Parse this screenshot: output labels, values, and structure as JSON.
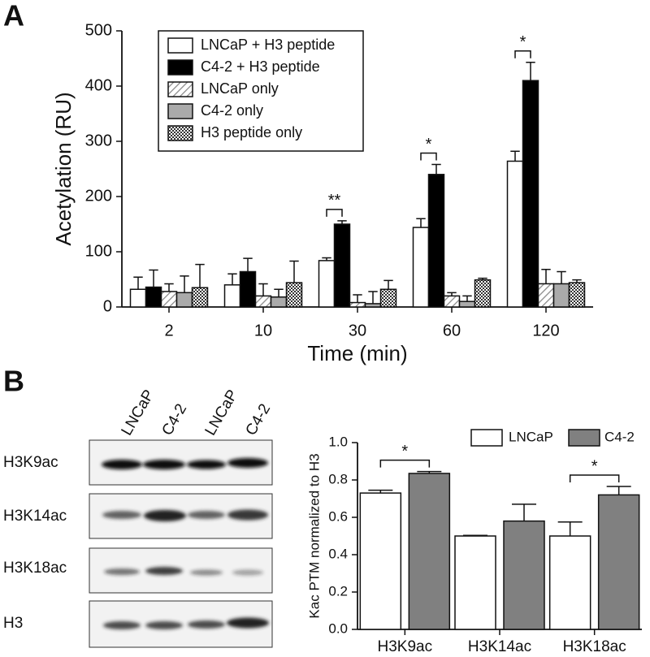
{
  "panels": [
    "A",
    "B"
  ],
  "blot": {
    "columns": [
      "LNCaP",
      "C4-2",
      "LNCaP",
      "C4-2"
    ],
    "rows": [
      "H3K9ac",
      "H3K14ac",
      "H3K18ac",
      "H3"
    ]
  },
  "chart_data": [
    {
      "type": "bar",
      "xlabel": "Time (min)",
      "ylabel": "Acetylation (RU)",
      "categories": [
        "2",
        "10",
        "30",
        "60",
        "120"
      ],
      "ylim": [
        0,
        500
      ],
      "yticks": [
        0,
        100,
        200,
        300,
        400,
        500
      ],
      "legend": "upper left",
      "series": [
        {
          "name": "LNCaP + H3 peptide",
          "color": "#ffffff",
          "values": [
            32,
            40,
            84,
            144,
            264
          ],
          "errors": [
            22,
            20,
            5,
            16,
            18
          ]
        },
        {
          "name": "C4-2 + H3 peptide",
          "color": "#000000",
          "values": [
            36,
            64,
            150,
            240,
            410
          ],
          "errors": [
            31,
            24,
            6,
            18,
            33
          ]
        },
        {
          "name": "LNCaP only",
          "color": "#ffffff",
          "pattern": "hatch",
          "values": [
            28,
            20,
            8,
            20,
            42
          ],
          "errors": [
            14,
            22,
            14,
            6,
            26
          ]
        },
        {
          "name": "C4-2 only",
          "color": "#aaaaaa",
          "values": [
            26,
            18,
            6,
            10,
            42
          ],
          "errors": [
            30,
            14,
            22,
            10,
            22
          ]
        },
        {
          "name": "H3 peptide only",
          "color": "#ffffff",
          "pattern": "checker",
          "values": [
            35,
            44,
            32,
            49,
            44
          ],
          "errors": [
            42,
            39,
            16,
            3,
            5
          ]
        }
      ],
      "annotations": [
        "**",
        "*",
        "*"
      ]
    },
    {
      "type": "bar",
      "ylabel": "Kac PTM normalized to H3",
      "categories": [
        "H3K9ac",
        "H3K14ac",
        "H3K18ac"
      ],
      "ylim": [
        0,
        1
      ],
      "yticks": [
        {
          "value": 0,
          "label": "0.0"
        },
        0.2,
        0.4,
        0.6,
        0.8,
        {
          "value": 1,
          "label": "1.0"
        }
      ],
      "legend": "upper right",
      "series": [
        {
          "name": "LNCaP",
          "color": "#ffffff",
          "values": [
            0.73,
            0.5,
            0.5
          ],
          "errors": [
            0.015,
            0.003,
            0.075
          ]
        },
        {
          "name": "C4-2",
          "color": "#808080",
          "values": [
            0.835,
            0.58,
            0.72
          ],
          "errors": [
            0.01,
            0.09,
            0.045
          ]
        }
      ],
      "annotations": [
        "*",
        "*"
      ]
    }
  ]
}
